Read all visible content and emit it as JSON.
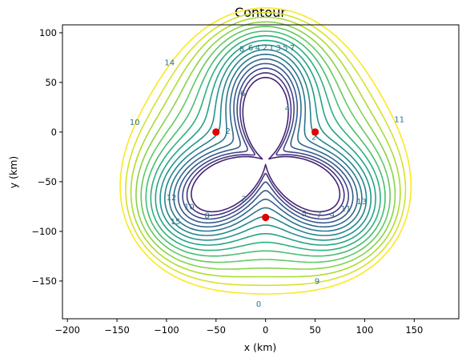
{
  "chart_data": {
    "type": "contour",
    "title": "Contour",
    "xlabel": "x (km)",
    "ylabel": "y (km)",
    "xlim": [
      -205,
      195
    ],
    "ylim": [
      -188,
      108
    ],
    "xticks": [
      -200,
      -150,
      -100,
      -50,
      0,
      50,
      100,
      150
    ],
    "yticks": [
      -150,
      -100,
      -50,
      0,
      50,
      100
    ],
    "grid": false,
    "colormap": "viridis",
    "levels": [
      1,
      2,
      3,
      4,
      5,
      6,
      7,
      8,
      9,
      10,
      11,
      12,
      13,
      14,
      15,
      16
    ],
    "centroid": [
      0,
      -29
    ],
    "sources": [
      {
        "x": -50,
        "y": 0
      },
      {
        "x": 50,
        "y": 0
      },
      {
        "x": 0,
        "y": -86
      }
    ],
    "contour_labels": [
      {
        "text": "8",
        "x": -24,
        "y": 84
      },
      {
        "text": "6",
        "x": -15,
        "y": 85
      },
      {
        "text": "4",
        "x": -8,
        "y": 85
      },
      {
        "text": "2",
        "x": -1,
        "y": 85
      },
      {
        "text": "1",
        "x": 6,
        "y": 85
      },
      {
        "text": "3",
        "x": 13,
        "y": 85
      },
      {
        "text": "5",
        "x": 20,
        "y": 85
      },
      {
        "text": "7",
        "x": 27,
        "y": 85
      },
      {
        "text": "14",
        "x": -97,
        "y": 70
      },
      {
        "text": "6",
        "x": -23,
        "y": 39
      },
      {
        "text": "4",
        "x": 22,
        "y": 24
      },
      {
        "text": "10",
        "x": -132,
        "y": 10
      },
      {
        "text": "11",
        "x": 135,
        "y": 13
      },
      {
        "text": "2",
        "x": -38,
        "y": 1
      },
      {
        "text": "2",
        "x": 49,
        "y": -5
      },
      {
        "text": "3",
        "x": -22,
        "y": -67
      },
      {
        "text": "12",
        "x": -95,
        "y": -66
      },
      {
        "text": "10",
        "x": -77,
        "y": -75
      },
      {
        "text": "8",
        "x": -59,
        "y": -84
      },
      {
        "text": "5",
        "x": 39,
        "y": -82
      },
      {
        "text": "7",
        "x": 54,
        "y": -83
      },
      {
        "text": "9",
        "x": 67,
        "y": -84
      },
      {
        "text": "11",
        "x": 81,
        "y": -77
      },
      {
        "text": "13",
        "x": 97,
        "y": -70
      },
      {
        "text": "15",
        "x": -91,
        "y": -90
      },
      {
        "text": "0",
        "x": -7,
        "y": -173
      },
      {
        "text": "9",
        "x": 52,
        "y": -150
      }
    ]
  }
}
